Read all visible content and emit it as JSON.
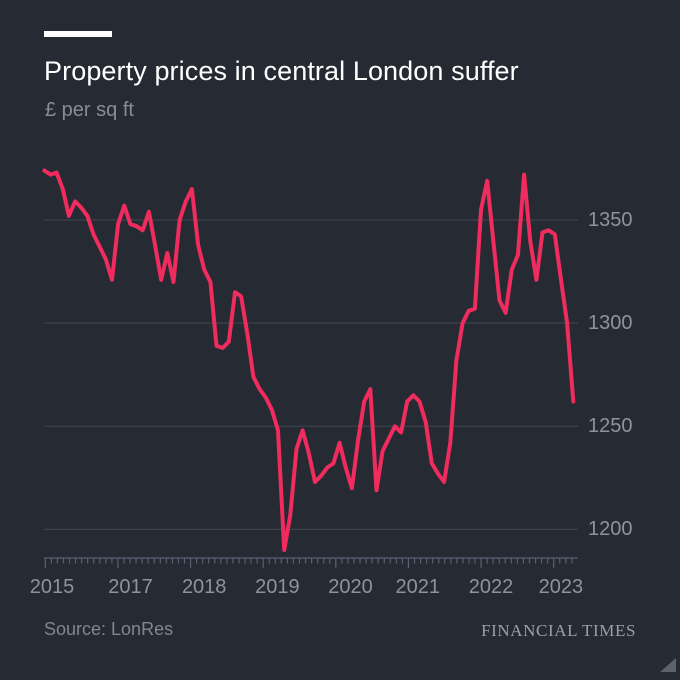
{
  "header": {
    "title": "Property prices in central London suffer",
    "subtitle": "£ per sq ft"
  },
  "footer": {
    "source": "Source: LonRes",
    "brand": "FINANCIAL TIMES"
  },
  "colors": {
    "background": "#262a33",
    "line": "#f02b5d",
    "gridline": "#3d424b",
    "axis": "#596070",
    "title": "#ffffff",
    "subtitle": "#878d97",
    "tick_label": "#8e939d",
    "source": "#81868f",
    "brand": "#9ba0a8",
    "accent_bar": "#ffffff",
    "corner": "#5d626b"
  },
  "chart_data": {
    "type": "line",
    "title": "Property prices in central London suffer",
    "ylabel": "£ per sq ft",
    "unit_suffix": "£ per sq ft",
    "frequency": "monthly",
    "x_start": "2015-12",
    "x_end": "2023-02",
    "values": [
      1374,
      1372,
      1373,
      1365,
      1352,
      1359,
      1356,
      1352,
      1343,
      1337,
      1331,
      1321,
      1348,
      1357,
      1348,
      1347,
      1345,
      1354,
      1338,
      1321,
      1334,
      1320,
      1350,
      1359,
      1365,
      1338,
      1326,
      1320,
      1289,
      1288,
      1291,
      1315,
      1313,
      1295,
      1274,
      1268,
      1264,
      1258,
      1248,
      1190,
      1207,
      1239,
      1248,
      1237,
      1223,
      1226,
      1230,
      1232,
      1242,
      1230,
      1220,
      1243,
      1262,
      1268,
      1219,
      1238,
      1244,
      1250,
      1247,
      1262,
      1265,
      1262,
      1252,
      1232,
      1227,
      1223,
      1242,
      1282,
      1300,
      1306,
      1307,
      1355,
      1369,
      1340,
      1311,
      1305,
      1326,
      1333,
      1372,
      1340,
      1321,
      1344,
      1345,
      1343,
      1321,
      1300,
      1262
    ],
    "y_ticks": [
      1350,
      1300,
      1250,
      1200
    ],
    "ylim": [
      1186,
      1384
    ],
    "grid": "horizontal-only",
    "legend": "none",
    "x_tick_labels": [
      "2015",
      "2017",
      "2018",
      "2019",
      "2020",
      "2021",
      "2022",
      "2023"
    ],
    "x_tick_label_positions": [
      0.015,
      0.162,
      0.3,
      0.437,
      0.574,
      0.7,
      0.837,
      0.968
    ],
    "minor_ticks": "monthly",
    "major_ticks": "yearly"
  }
}
